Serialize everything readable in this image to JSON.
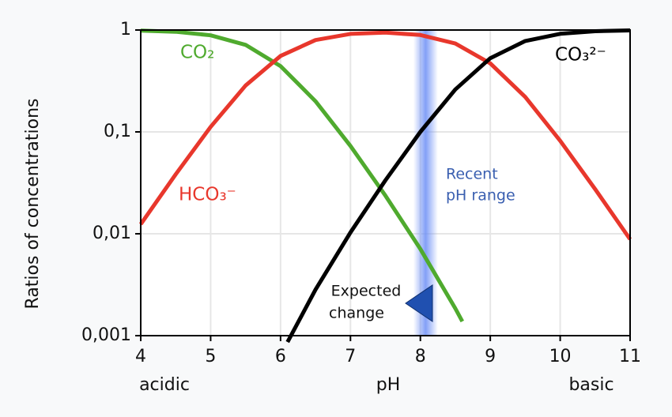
{
  "chart_data": {
    "type": "line",
    "xlabels": [
      "acidic",
      "pH",
      "basic"
    ],
    "ylabel": "Ratios of concentrations",
    "xlim": [
      4,
      11
    ],
    "xticks": [
      4,
      5,
      6,
      7,
      8,
      9,
      10,
      11
    ],
    "ylim": [
      0.001,
      1
    ],
    "yticks": [
      {
        "value": 0.001,
        "label": "0,001"
      },
      {
        "value": 0.01,
        "label": "0,01"
      },
      {
        "value": 0.1,
        "label": "0,1"
      },
      1
    ],
    "log_y": true,
    "grid": true,
    "series": [
      {
        "name": "CO₂",
        "color": "#4faa2e",
        "x": [
          4,
          4.5,
          5,
          5.5,
          6,
          6.5,
          7,
          7.5,
          8,
          8.5,
          8.6
        ],
        "values": [
          0.988,
          0.962,
          0.888,
          0.715,
          0.442,
          0.2,
          0.0728,
          0.0237,
          0.00709,
          0.00185,
          0.00138
        ]
      },
      {
        "name": "HCO₃⁻",
        "color": "#e8372c",
        "x": [
          4,
          4.5,
          5,
          5.5,
          6,
          6.5,
          7,
          7.5,
          8,
          8.5,
          9,
          9.5,
          10,
          10.5,
          11
        ],
        "values": [
          0.0124,
          0.0383,
          0.112,
          0.285,
          0.557,
          0.797,
          0.917,
          0.943,
          0.893,
          0.737,
          0.471,
          0.22,
          0.0818,
          0.0274,
          0.00883
        ]
      },
      {
        "name": "CO₃²⁻",
        "color": "#000000",
        "x": [
          6.1,
          6.5,
          7,
          7.5,
          8,
          8.5,
          9,
          9.5,
          10,
          10.5,
          11
        ],
        "values": [
          0.000865,
          0.00283,
          0.0103,
          0.0335,
          0.1,
          0.261,
          0.529,
          0.78,
          0.918,
          0.973,
          0.991
        ]
      }
    ],
    "highlight": {
      "range": [
        7.9,
        8.25
      ],
      "color": "#6d8ff5",
      "label": [
        "Recent",
        "pH range"
      ]
    },
    "annotation": [
      "Expected",
      "change"
    ]
  }
}
